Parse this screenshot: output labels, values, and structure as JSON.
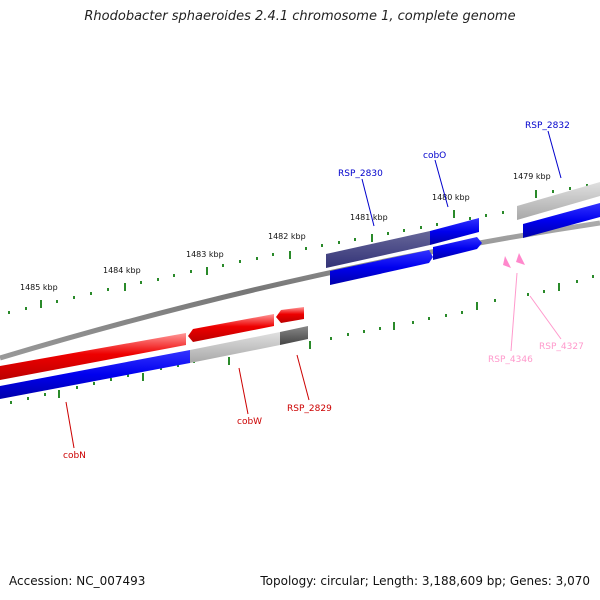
{
  "title": "Rhodobacter sphaeroides 2.4.1 chromosome 1, complete genome",
  "footer": {
    "accession": "Accession: NC_007493",
    "stats": "Topology: circular; Length: 3,188,609 bp; Genes: 3,070"
  },
  "colors": {
    "backbone": "#808080",
    "ticks": "#2a8a2a",
    "forward_gene": "#ee0000",
    "reverse_gene": "#0000ee",
    "other_gene": "#c0c0c0",
    "dark_gene": "#555555",
    "navy_gene": "#444488",
    "pink_gene": "#ff88cc"
  },
  "kbp_labels": [
    "1485 kbp",
    "1484 kbp",
    "1483 kbp",
    "1482 kbp",
    "1481 kbp",
    "1480 kbp",
    "1479 kbp"
  ],
  "gene_labels": {
    "rsp_2832": "RSP_2832",
    "cobo": "cobO",
    "rsp_2830": "RSP_2830",
    "cobn": "cobN",
    "cobw": "cobW",
    "rsp_2829": "RSP_2829",
    "rsp_4346": "RSP_4346",
    "rsp_4327": "RSP_4327"
  }
}
